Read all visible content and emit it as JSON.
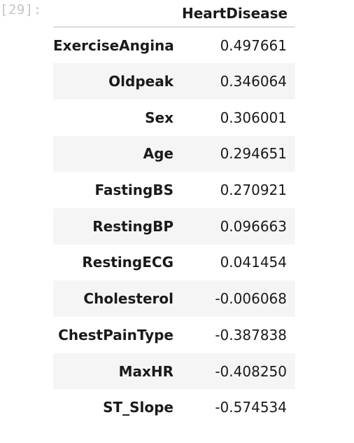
{
  "cell": {
    "prompt": "[29]:"
  },
  "table": {
    "column_header": "HeartDisease",
    "rows": [
      {
        "label": "ExerciseAngina",
        "value": "0.497661"
      },
      {
        "label": "Oldpeak",
        "value": "0.346064"
      },
      {
        "label": "Sex",
        "value": "0.306001"
      },
      {
        "label": "Age",
        "value": "0.294651"
      },
      {
        "label": "FastingBS",
        "value": "0.270921"
      },
      {
        "label": "RestingBP",
        "value": "0.096663"
      },
      {
        "label": "RestingECG",
        "value": "0.041454"
      },
      {
        "label": "Cholesterol",
        "value": "-0.006068"
      },
      {
        "label": "ChestPainType",
        "value": "-0.387838"
      },
      {
        "label": "MaxHR",
        "value": "-0.408250"
      },
      {
        "label": "ST_Slope",
        "value": "-0.574534"
      }
    ]
  }
}
